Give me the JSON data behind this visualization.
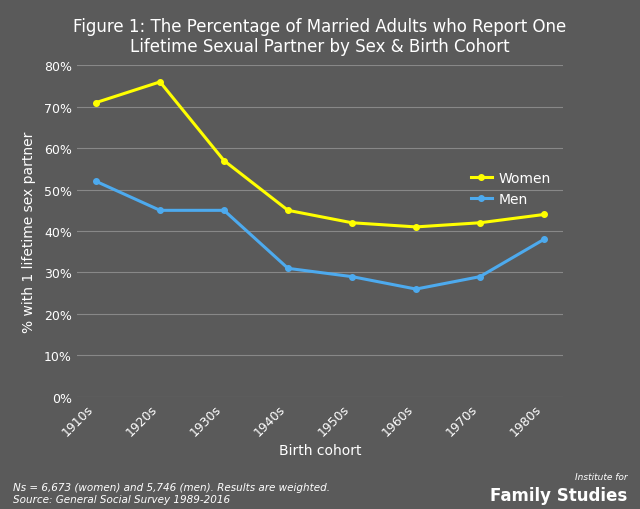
{
  "title": "Figure 1: The Percentage of Married Adults who Report One\nLifetime Sexual Partner by Sex & Birth Cohort",
  "xlabel": "Birth cohort",
  "ylabel": "% with 1 lifetime sex partner",
  "categories": [
    "1910s",
    "1920s",
    "1930s",
    "1940s",
    "1950s",
    "1960s",
    "1970s",
    "1980s"
  ],
  "women_values": [
    71,
    76,
    57,
    45,
    42,
    41,
    42,
    44
  ],
  "men_values": [
    52,
    45,
    45,
    31,
    29,
    26,
    29,
    38
  ],
  "women_color": "#FFFF00",
  "men_color": "#4DAAEE",
  "background_color": "#5a5a5a",
  "plot_bg_color": "#5a5a5a",
  "grid_color": "#888888",
  "text_color": "#FFFFFF",
  "ylim": [
    0,
    80
  ],
  "yticks": [
    0,
    10,
    20,
    30,
    40,
    50,
    60,
    70,
    80
  ],
  "footnote_line1": "Ns = 6,673 (women) and 5,746 (men). Results are weighted.",
  "footnote_line2": "Source: General Social Survey 1989-2016",
  "legend_women": "Women",
  "legend_men": "Men",
  "title_fontsize": 12,
  "axis_label_fontsize": 10,
  "tick_fontsize": 9,
  "legend_fontsize": 10,
  "footnote_fontsize": 7.5,
  "linewidth": 2.2,
  "marker": "o",
  "markersize": 4
}
